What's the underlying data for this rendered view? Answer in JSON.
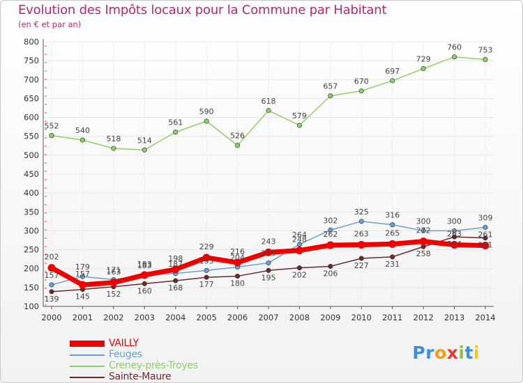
{
  "chart_data": {
    "type": "line",
    "title": "Evolution des Impôts locaux pour la Commune par Habitant",
    "subtitle": "(en € et par an)",
    "x": [
      "2000",
      "2001",
      "2002",
      "2003",
      "2004",
      "2005",
      "2006",
      "2007",
      "2008",
      "2009",
      "2010",
      "2011",
      "2012",
      "2013",
      "2014"
    ],
    "ylim": [
      100,
      800
    ],
    "yticks": [
      100,
      150,
      200,
      250,
      300,
      350,
      400,
      450,
      500,
      550,
      600,
      650,
      700,
      750,
      800
    ],
    "grid": true,
    "legend_position": "bottom-left",
    "series": [
      {
        "name": "VAILLY",
        "color": "#ee0000",
        "values": [
          202,
          157,
          163,
          183,
          198,
          229,
          216,
          243,
          248,
          262,
          263,
          265,
          272,
          263,
          261
        ]
      },
      {
        "name": "Feuges",
        "color": "#6a9fd0",
        "values": [
          157,
          179,
          171,
          183,
          187,
          195,
          204,
          215,
          264,
          302,
          325,
          316,
          300,
          300,
          309
        ]
      },
      {
        "name": "Creney-près-Troyes",
        "color": "#8fcf6a",
        "values": [
          552,
          540,
          518,
          514,
          561,
          590,
          526,
          618,
          579,
          657,
          670,
          697,
          729,
          760,
          753
        ]
      },
      {
        "name": "Sainte-Maure",
        "color": "#6b2a2a",
        "values": [
          139,
          145,
          152,
          160,
          168,
          177,
          180,
          195,
          202,
          206,
          227,
          231,
          258,
          284,
          281
        ]
      }
    ]
  },
  "logo_text": "Proxiti",
  "colors": {
    "title": "#b5286e",
    "grid": "#ececec",
    "axis": "#555555"
  }
}
